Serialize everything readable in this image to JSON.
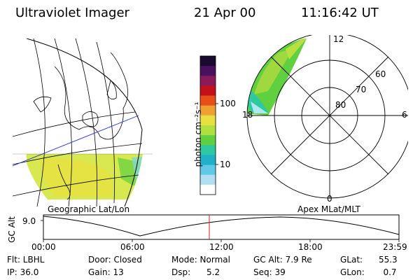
{
  "header": {
    "instrument": "Ultraviolet Imager",
    "date": "21 Apr 00",
    "time": "11:16:42 UT"
  },
  "colorbar": {
    "unit_label": "photon cm⁻²s⁻¹",
    "ticks": [
      "100",
      "10"
    ],
    "colors": [
      "#1a0a2e",
      "#4a1060",
      "#8a1a5a",
      "#c4101a",
      "#e8501a",
      "#f0a030",
      "#e8e040",
      "#b0e040",
      "#60d040",
      "#30c8a0",
      "#20b0c8",
      "#60c8e8",
      "#b0e0f0",
      "#ffffff"
    ]
  },
  "polar": {
    "mlt_labels": [
      "12",
      "18",
      "6",
      "0"
    ],
    "lat_labels": [
      "60",
      "70",
      "80"
    ]
  },
  "geo_panel": {
    "label": "Geographic Lat/Lon"
  },
  "apex_panel": {
    "label": "Apex MLat/MLT"
  },
  "timeline": {
    "ylabel": "GC Alt",
    "ytick": "9.0",
    "xticks": [
      "00:00",
      "06:00",
      "12:00",
      "18:00",
      "23:59"
    ],
    "current_marker_color": "#d02020"
  },
  "info": {
    "filter": "Flt: LBHL",
    "ip": "IP: 36.0",
    "door": "Door: Closed",
    "gain": "Gain: 13",
    "mode": "Mode: Normal",
    "dsp": "Dsp:      5.2",
    "gc_alt": "GC Alt: 7.9 Re",
    "seq": "Seq: 39",
    "glat": "GLat:      55.3",
    "glon": "GLon:       0.7"
  }
}
